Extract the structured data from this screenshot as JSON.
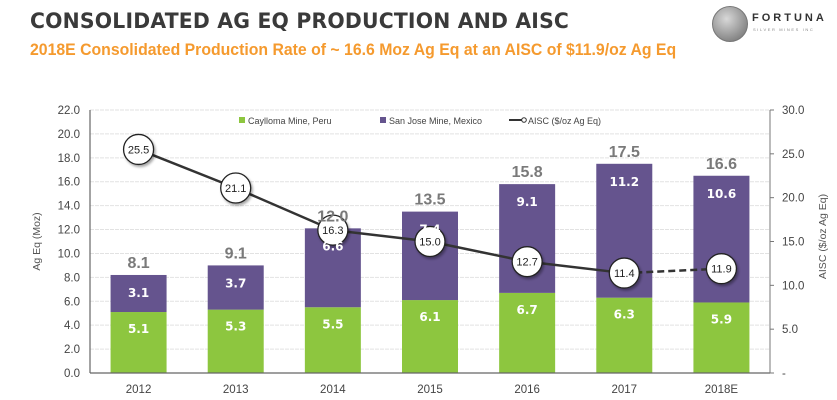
{
  "header": {
    "title": "CONSOLIDATED AG EQ PRODUCTION AND AISC",
    "subtitle": "2018E Consolidated Production Rate of ~ 16.6 Moz Ag Eq at an AISC of $11.9/oz Ag Eq",
    "logo_name": "FORTUNA",
    "logo_subtext": "SILVER MINES INC",
    "logo_icon": "silver-coin-icon"
  },
  "colors": {
    "caylloma": "#8dc63f",
    "san_jose": "#65548e",
    "aisc_line": "#333333",
    "subtitle": "#f59a2e"
  },
  "chart_data": {
    "type": "bar",
    "stacked": true,
    "title": "",
    "categories": [
      "2012",
      "2013",
      "2014",
      "2015",
      "2016",
      "2017",
      "2018E"
    ],
    "series": [
      {
        "name": "Caylloma Mine, Peru",
        "type": "bar",
        "axis": "left",
        "values": [
          5.1,
          5.3,
          5.5,
          6.1,
          6.7,
          6.3,
          5.9
        ]
      },
      {
        "name": "San Jose Mine, Mexico",
        "type": "bar",
        "axis": "left",
        "values": [
          3.1,
          3.7,
          6.6,
          7.4,
          9.1,
          11.2,
          10.6
        ]
      },
      {
        "name": "AISC ($/oz Ag Eq)",
        "type": "line",
        "axis": "right",
        "values": [
          25.5,
          21.1,
          16.3,
          15.0,
          12.7,
          11.4,
          11.9
        ],
        "dashed_last_segment": true
      }
    ],
    "totals": [
      "8.1",
      "9.1",
      "12.0",
      "13.5",
      "15.8",
      "17.5",
      "16.6"
    ],
    "segment_labels": {
      "caylloma": [
        "5.1",
        "5.3",
        "5.5",
        "6.1",
        "6.7",
        "6.3",
        "5.9"
      ],
      "san_jose": [
        "3.1",
        "3.7",
        "6.6",
        "7.4",
        "9.1",
        "11.2",
        "10.6"
      ],
      "aisc": [
        "25.5",
        "21.1",
        "16.3",
        "15.0",
        "12.7",
        "11.4",
        "11.9"
      ]
    },
    "ylabel": "Ag Eq (Moz)",
    "y2label": "AISC ($/oz Ag Eq)",
    "ylim": [
      0,
      22
    ],
    "y2lim": [
      0,
      30
    ],
    "yticks": [
      "0.0",
      "2.0",
      "4.0",
      "6.0",
      "8.0",
      "10.0",
      "12.0",
      "14.0",
      "16.0",
      "18.0",
      "20.0",
      "22.0"
    ],
    "y2ticks": [
      "-",
      "5.0",
      "10.0",
      "15.0",
      "20.0",
      "25.0",
      "30.0"
    ],
    "grid": true,
    "legend_position": "top",
    "legend": [
      "Caylloma Mine, Peru",
      "San Jose Mine, Mexico",
      "AISC ($/oz Ag Eq)"
    ]
  }
}
